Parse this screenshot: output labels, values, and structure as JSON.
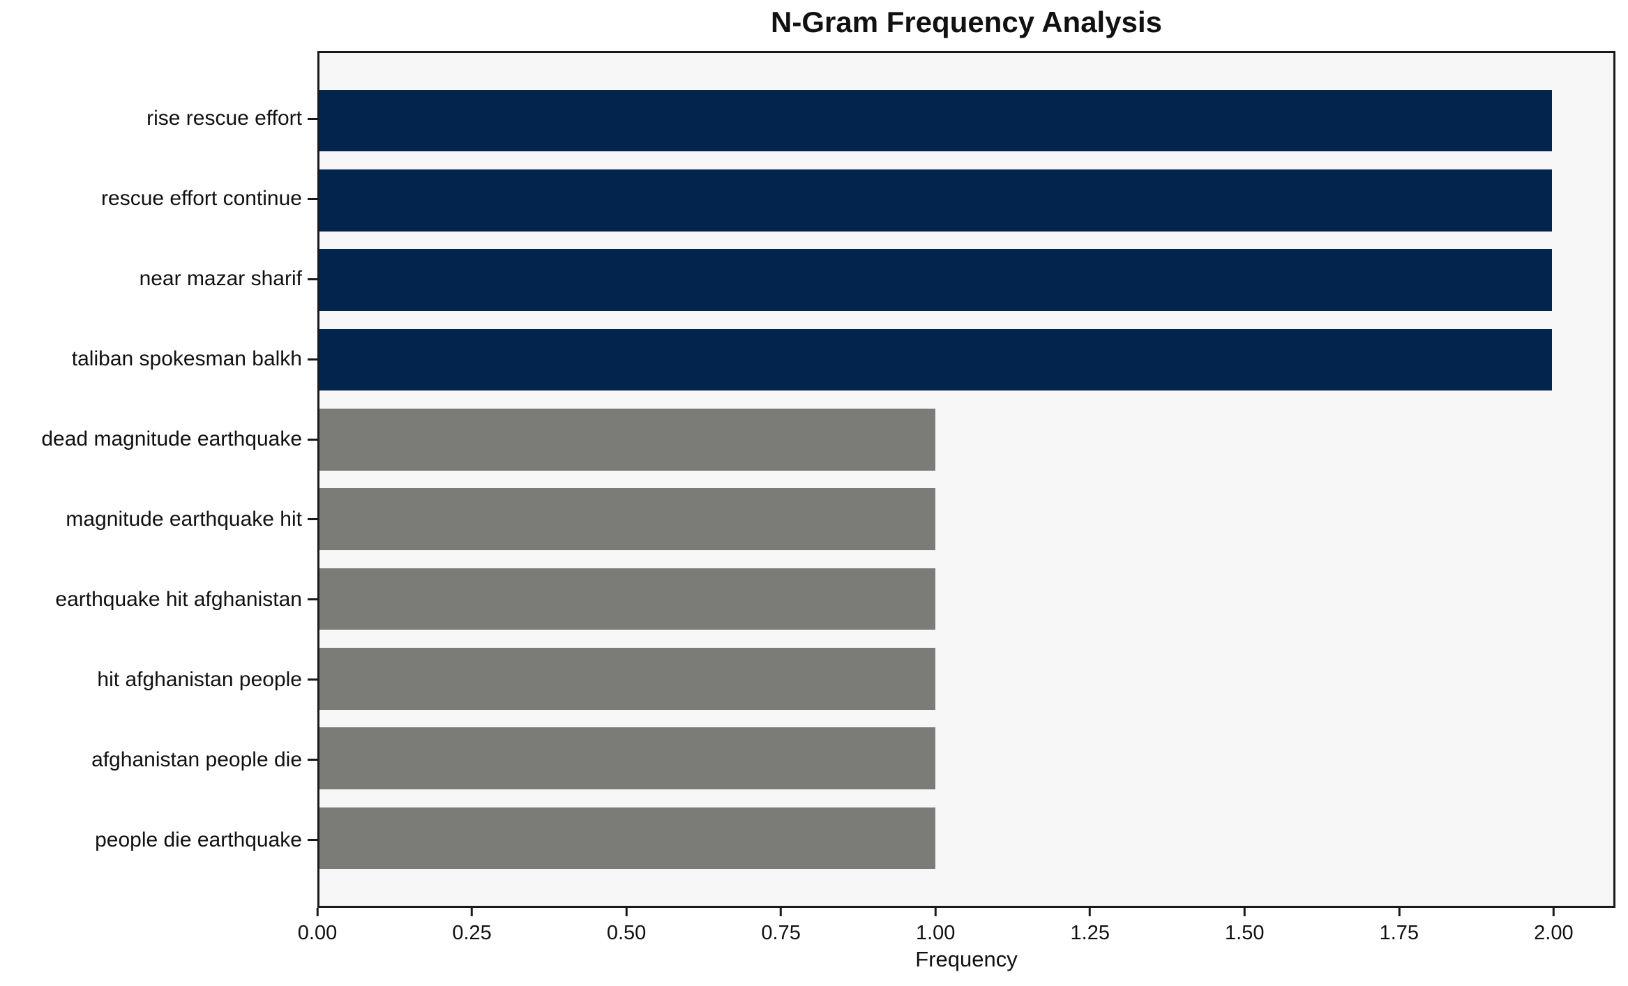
{
  "title": "N-Gram Frequency Analysis",
  "chart_data": {
    "type": "bar",
    "orientation": "horizontal",
    "title": "N-Gram Frequency Analysis",
    "xlabel": "Frequency",
    "ylabel": "",
    "categories": [
      "rise rescue effort",
      "rescue effort continue",
      "near mazar sharif",
      "taliban spokesman balkh",
      "dead magnitude earthquake",
      "magnitude earthquake hit",
      "earthquake hit afghanistan",
      "hit afghanistan people",
      "afghanistan people die",
      "people die earthquake"
    ],
    "values": [
      2,
      2,
      2,
      2,
      1,
      1,
      1,
      1,
      1,
      1
    ],
    "bar_colors": [
      "#02244d",
      "#02244d",
      "#02244d",
      "#02244d",
      "#7b7b78",
      "#7b7b78",
      "#7b7b78",
      "#7b7b78",
      "#7b7b78",
      "#7b7b78"
    ],
    "xlim": [
      0,
      2.1
    ],
    "xticks": [
      0,
      0.25,
      0.5,
      0.75,
      1.0,
      1.25,
      1.5,
      1.75,
      2.0
    ],
    "xtick_labels": [
      "0.00",
      "0.25",
      "0.50",
      "0.75",
      "1.00",
      "1.25",
      "1.50",
      "1.75",
      "2.00"
    ],
    "grid": false,
    "legend_position": "none",
    "colors": {
      "high_freq_bar": "#02244d",
      "low_freq_bar": "#7b7b78",
      "plot_background": "#f7f7f7",
      "figure_background": "#ffffff",
      "axis": "#1a1a1a",
      "text": "#111111"
    }
  }
}
